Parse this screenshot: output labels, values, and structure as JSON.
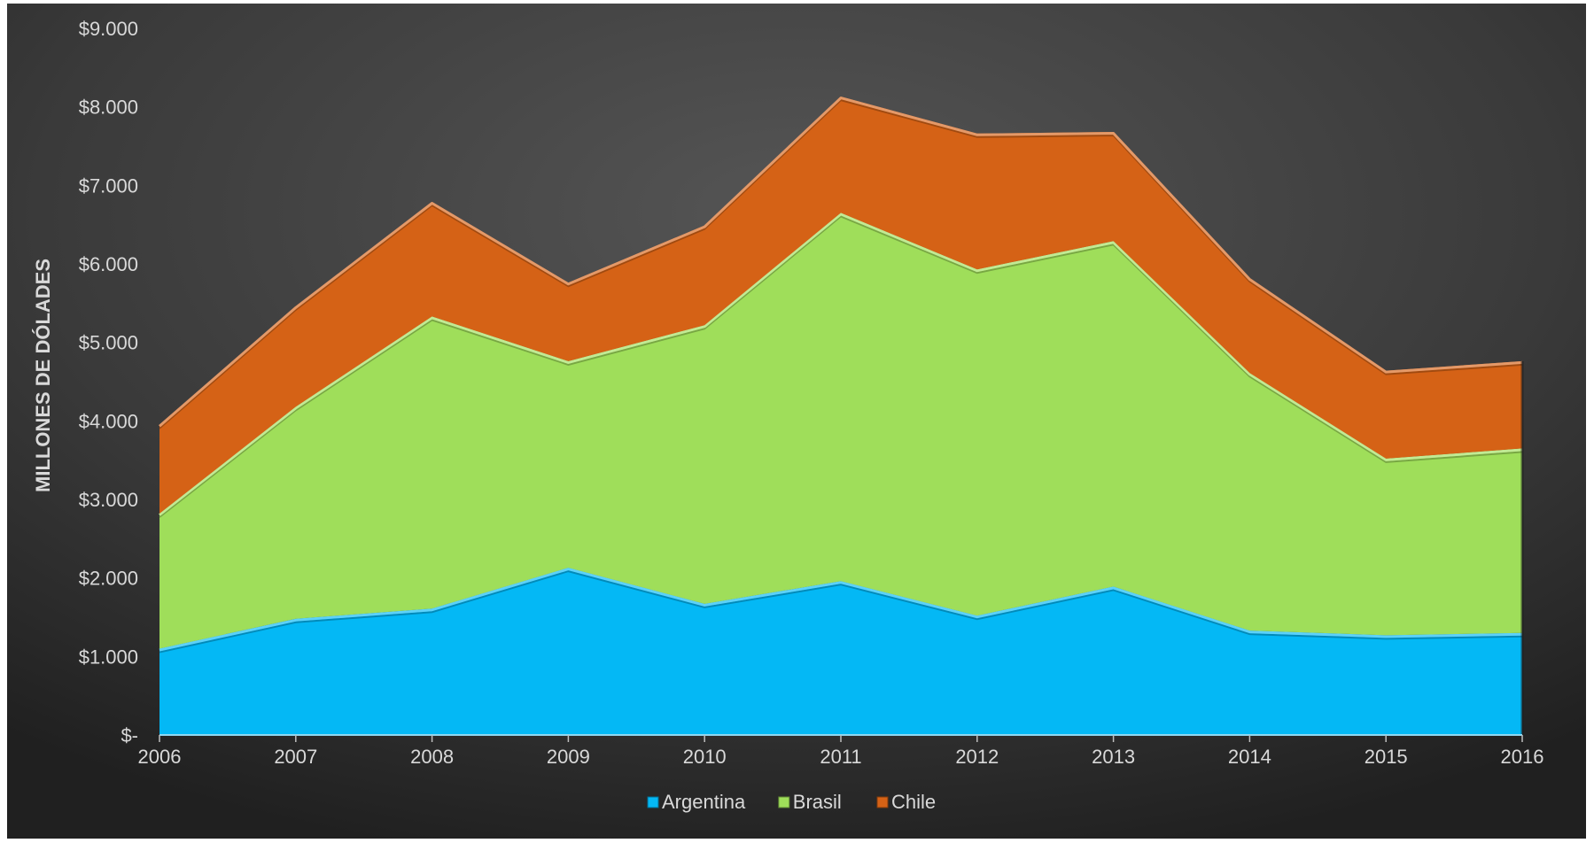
{
  "chart_data": {
    "type": "area",
    "stacked": true,
    "title": "",
    "xlabel": "",
    "ylabel": "MILLONES DE DÓLADES",
    "categories": [
      "2006",
      "2007",
      "2008",
      "2009",
      "2010",
      "2011",
      "2012",
      "2013",
      "2014",
      "2015",
      "2016"
    ],
    "ylim": [
      0,
      9000
    ],
    "yticks": [
      0,
      1000,
      2000,
      3000,
      4000,
      5000,
      6000,
      7000,
      8000,
      9000
    ],
    "ytick_labels": [
      "$-",
      "$1.000",
      "$2.000",
      "$3.000",
      "$4.000",
      "$5.000",
      "$6.000",
      "$7.000",
      "$8.000",
      "$9.000"
    ],
    "grid": false,
    "legend_position": "bottom",
    "series": [
      {
        "name": "Argentina",
        "color": "#04b8f5",
        "values": [
          1100,
          1480,
          1610,
          2130,
          1670,
          1960,
          1520,
          1890,
          1330,
          1270,
          1300
        ]
      },
      {
        "name": "Brasil",
        "color": "#9fde5a",
        "values": [
          1720,
          2700,
          3720,
          2630,
          3550,
          4690,
          4410,
          4400,
          3280,
          2250,
          2350
        ]
      },
      {
        "name": "Chile",
        "color": "#d56216",
        "values": [
          1130,
          1280,
          1460,
          1000,
          1270,
          1480,
          1730,
          1390,
          1210,
          1120,
          1110
        ]
      }
    ]
  }
}
